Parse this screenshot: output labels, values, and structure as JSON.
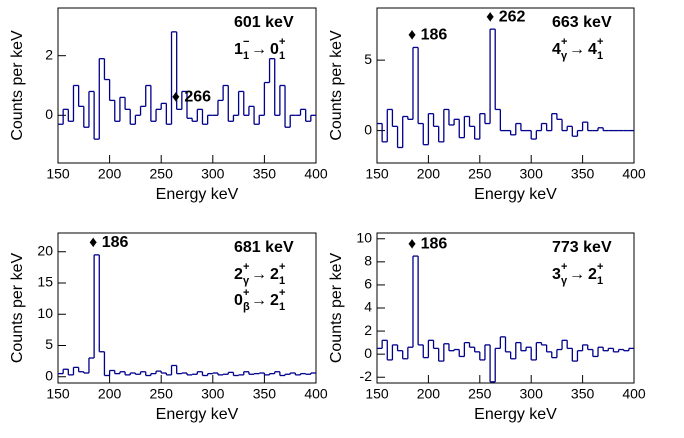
{
  "chart_data": [
    {
      "type": "histogram",
      "x_label": "Energy keV",
      "y_label": "Counts per keV",
      "color": "#00008b",
      "energy_label": "601 keV",
      "transitions": [
        {
          "from": "1",
          "from_sup": "−",
          "from_sub": "1",
          "arrow": "→",
          "to": "0",
          "to_sup": "+",
          "to_sub": "1"
        }
      ],
      "peak_labels": [
        {
          "x": 266,
          "label": "♦ 266"
        }
      ],
      "xlim": [
        150,
        400
      ],
      "xticks": [
        150,
        200,
        250,
        300,
        350,
        400
      ],
      "ylim": [
        -1.6,
        3.6
      ],
      "yticks": [
        0,
        2
      ],
      "bins": [
        150,
        155,
        160,
        165,
        170,
        175,
        180,
        185,
        190,
        195,
        200,
        205,
        210,
        215,
        220,
        225,
        230,
        235,
        240,
        245,
        250,
        255,
        260,
        265,
        270,
        275,
        280,
        285,
        290,
        295,
        300,
        305,
        310,
        315,
        320,
        325,
        330,
        335,
        340,
        345,
        350,
        355,
        360,
        365,
        370,
        375,
        380,
        385,
        390,
        395,
        400
      ],
      "values": [
        -0.3,
        0.2,
        -0.2,
        1.0,
        0.3,
        -0.4,
        0.8,
        -0.8,
        1.9,
        1.2,
        0.5,
        -0.2,
        0.6,
        0.2,
        -0.3,
        0.0,
        0.3,
        1.0,
        -0.2,
        0.2,
        0.4,
        -0.3,
        2.8,
        0.2,
        0.8,
        -0.1,
        -0.2,
        0.2,
        -0.3,
        0.0,
        0.0,
        0.5,
        1.0,
        -0.2,
        0.0,
        0.8,
        0.0,
        0.3,
        -0.3,
        0.0,
        1.1,
        1.9,
        0.0,
        1.0,
        -0.4,
        0.0,
        0.0,
        0.2,
        -0.2,
        0.0
      ]
    },
    {
      "type": "histogram",
      "x_label": "Energy keV",
      "y_label": "Counts per keV",
      "color": "#00008b",
      "energy_label": "663 keV",
      "transitions": [
        {
          "from": "4",
          "from_sup": "+",
          "from_sub": "γ",
          "arrow": "→",
          "to": "4",
          "to_sup": "+",
          "to_sub": "1"
        }
      ],
      "peak_labels": [
        {
          "x": 186,
          "label": "♦ 186"
        },
        {
          "x": 262,
          "label": "♦ 262"
        }
      ],
      "xlim": [
        150,
        400
      ],
      "xticks": [
        150,
        200,
        250,
        300,
        350,
        400
      ],
      "ylim": [
        -2.3,
        8.7
      ],
      "yticks": [
        0,
        5
      ],
      "bins": [
        150,
        155,
        160,
        165,
        170,
        175,
        180,
        185,
        190,
        195,
        200,
        205,
        210,
        215,
        220,
        225,
        230,
        235,
        240,
        245,
        250,
        255,
        260,
        265,
        270,
        275,
        280,
        285,
        290,
        295,
        300,
        305,
        310,
        315,
        320,
        325,
        330,
        335,
        340,
        345,
        350,
        355,
        360,
        365,
        370,
        375,
        380,
        385,
        390,
        395,
        400
      ],
      "values": [
        0.5,
        -0.8,
        1.5,
        0.3,
        -1.2,
        1.0,
        0.8,
        5.9,
        0.5,
        -1.0,
        1.2,
        0.3,
        -0.8,
        1.5,
        0.4,
        0.8,
        -0.5,
        1.0,
        0.3,
        -0.6,
        1.2,
        0.5,
        7.2,
        1.5,
        0.0,
        0.0,
        -0.3,
        0.5,
        0.0,
        0.0,
        -0.6,
        0.0,
        0.5,
        0.0,
        1.2,
        0.8,
        0.0,
        0.3,
        -0.4,
        0.0,
        0.6,
        0.0,
        0.0,
        0.2,
        0.0,
        0.0,
        0.0,
        0.0,
        0.0,
        0.0
      ]
    },
    {
      "type": "histogram",
      "x_label": "Energy keV",
      "y_label": "Counts per keV",
      "color": "#00008b",
      "energy_label": "681 keV",
      "transitions": [
        {
          "from": "2",
          "from_sup": "+",
          "from_sub": "γ",
          "arrow": "→",
          "to": "2",
          "to_sup": "+",
          "to_sub": "1"
        },
        {
          "from": "0",
          "from_sup": "+",
          "from_sub": "β",
          "arrow": "→",
          "to": "2",
          "to_sup": "+",
          "to_sub": "1"
        }
      ],
      "peak_labels": [
        {
          "x": 186,
          "label": "♦ 186"
        }
      ],
      "xlim": [
        150,
        400
      ],
      "xticks": [
        150,
        200,
        250,
        300,
        350,
        400
      ],
      "ylim": [
        -1,
        23
      ],
      "yticks": [
        0,
        5,
        10,
        15,
        20
      ],
      "bins": [
        150,
        155,
        160,
        165,
        170,
        175,
        180,
        185,
        190,
        195,
        200,
        205,
        210,
        215,
        220,
        225,
        230,
        235,
        240,
        245,
        250,
        255,
        260,
        265,
        270,
        275,
        280,
        285,
        290,
        295,
        300,
        305,
        310,
        315,
        320,
        325,
        330,
        335,
        340,
        345,
        350,
        355,
        360,
        365,
        370,
        375,
        380,
        385,
        390,
        395,
        400
      ],
      "values": [
        0.5,
        1.2,
        0.3,
        1.5,
        0.8,
        0.6,
        3.0,
        19.5,
        4.0,
        0.2,
        1.0,
        0.5,
        0.8,
        0.3,
        0.6,
        0.4,
        0.8,
        0.2,
        0.5,
        0.9,
        0.6,
        0.3,
        1.8,
        0.5,
        0.6,
        0.3,
        0.4,
        0.8,
        0.2,
        0.5,
        0.6,
        0.3,
        0.4,
        0.7,
        0.2,
        0.3,
        0.8,
        0.4,
        0.5,
        0.6,
        0.3,
        0.5,
        0.8,
        0.2,
        0.4,
        0.6,
        0.3,
        0.5,
        0.4,
        0.6
      ]
    },
    {
      "type": "histogram",
      "x_label": "Energy keV",
      "y_label": "Counts per keV",
      "color": "#00008b",
      "energy_label": "773 keV",
      "transitions": [
        {
          "from": "3",
          "from_sup": "+",
          "from_sub": "γ",
          "arrow": "→",
          "to": "2",
          "to_sup": "+",
          "to_sub": "1"
        }
      ],
      "peak_labels": [
        {
          "x": 186,
          "label": "♦ 186"
        }
      ],
      "xlim": [
        150,
        400
      ],
      "xticks": [
        150,
        200,
        250,
        300,
        350,
        400
      ],
      "ylim": [
        -2.5,
        10.5
      ],
      "yticks": [
        -2,
        0,
        2,
        4,
        6,
        8,
        10
      ],
      "bins": [
        150,
        155,
        160,
        165,
        170,
        175,
        180,
        185,
        190,
        195,
        200,
        205,
        210,
        215,
        220,
        225,
        230,
        235,
        240,
        245,
        250,
        255,
        260,
        265,
        270,
        275,
        280,
        285,
        290,
        295,
        300,
        305,
        310,
        315,
        320,
        325,
        330,
        335,
        340,
        345,
        350,
        355,
        360,
        365,
        370,
        375,
        380,
        385,
        390,
        395,
        400
      ],
      "values": [
        0.5,
        1.2,
        -0.5,
        0.8,
        0.3,
        -0.4,
        0.6,
        8.5,
        0.8,
        -0.3,
        1.2,
        0.5,
        -0.6,
        0.9,
        0.3,
        0.4,
        -0.2,
        1.0,
        0.6,
        0.2,
        -0.5,
        0.8,
        -2.4,
        0.5,
        1.5,
        0.2,
        -0.4,
        1.0,
        0.3,
        0.6,
        -0.5,
        1.0,
        0.8,
        0.2,
        -0.3,
        0.4,
        1.2,
        0.5,
        -0.6,
        0.3,
        0.8,
        0.4,
        -0.2,
        0.6,
        0.3,
        0.5,
        0.2,
        0.4,
        0.3,
        0.5
      ]
    }
  ]
}
